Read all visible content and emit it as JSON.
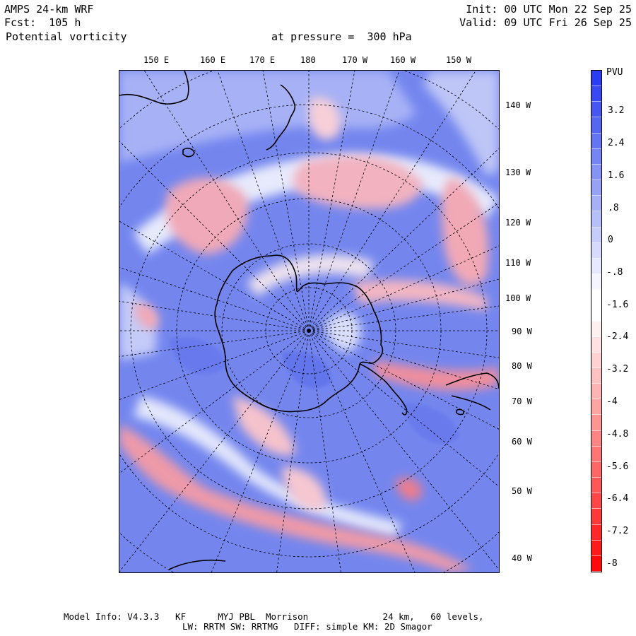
{
  "header": {
    "model": "AMPS 24-km WRF",
    "forecast": "Fcst:  105 h",
    "field": "Potential vorticity",
    "level": "at pressure =  300 hPa",
    "init": "Init: 00 UTC Mon 22 Sep 25",
    "valid": "Valid: 09 UTC Fri 26 Sep 25"
  },
  "map": {
    "top_lon_labels": [
      "150 E",
      "160 E",
      "170 E",
      "180",
      "170 W",
      "160 W",
      "150 W"
    ],
    "right_lon_labels": [
      "140 W",
      "130 W",
      "120 W",
      "110 W",
      "100 W",
      "90 W",
      "80 W",
      "70 W",
      "60 W",
      "50 W",
      "40 W"
    ]
  },
  "colorbar": {
    "unit": "PVU",
    "labels": [
      "3.2",
      "2.4",
      "1.6",
      ".8",
      "0",
      "-.8",
      "-1.6",
      "-2.4",
      "-3.2",
      "-4",
      "-4.8",
      "-5.6",
      "-6.4",
      "-7.2",
      "-8"
    ],
    "colors": [
      "#2b3cf2",
      "#3849f1",
      "#4657f0",
      "#5566f1",
      "#6575f2",
      "#7585f3",
      "#8593f4",
      "#95a2f5",
      "#a6b0f7",
      "#b6bff8",
      "#c6cdfa",
      "#d6dbfb",
      "#e6e9fd",
      "#f4f5fe",
      "#ffffff",
      "#ffffff",
      "#fff0f0",
      "#ffe1e1",
      "#ffd1d1",
      "#ffc2c2",
      "#ffb3b3",
      "#ffa3a3",
      "#ff9494",
      "#ff8585",
      "#ff7575",
      "#ff6666",
      "#ff5757",
      "#ff4747",
      "#ff3838",
      "#ff2929",
      "#ff1a1a",
      "#ff0a0a"
    ]
  },
  "footer": {
    "line1": "Model Info: V4.3.3   KF      MYJ PBL  Morrison              24 km,   60 levels,",
    "line2": "LW: RRTM SW: RRTMG   DIFF: simple KM: 2D Smagor"
  }
}
